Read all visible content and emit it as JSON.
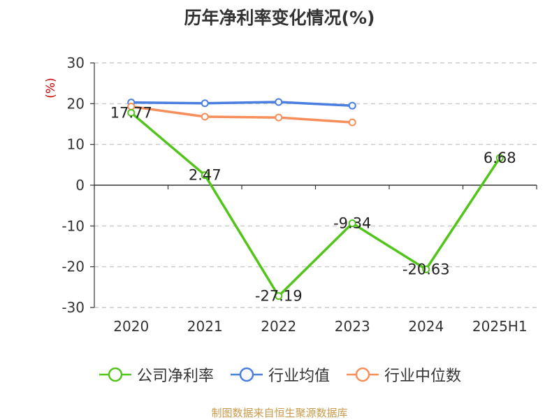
{
  "chart_data": {
    "type": "line",
    "title": "历年净利率变化情况(%)",
    "ylabel": "(%)",
    "categories": [
      "2020",
      "2021",
      "2022",
      "2023",
      "2024",
      "2025H1"
    ],
    "ylim": [
      -30,
      30
    ],
    "yticks": [
      "30",
      "20",
      "10",
      "0",
      "-10",
      "-20",
      "-30"
    ],
    "grid": true,
    "legend_position": "bottom",
    "series": [
      {
        "name": "公司净利率",
        "color": "#52c41a",
        "values": [
          17.77,
          2.47,
          -27.19,
          -9.34,
          -20.63,
          6.68
        ],
        "labels": [
          "17.77",
          "2.47",
          "-27.19",
          "-9.34",
          "-20.63",
          "6.68"
        ]
      },
      {
        "name": "行业均值",
        "color": "#4a7fe0",
        "values": [
          20.3,
          20.1,
          20.4,
          19.5,
          null,
          null
        ]
      },
      {
        "name": "行业中位数",
        "color": "#f78f5c",
        "values": [
          19.3,
          16.8,
          16.6,
          15.4,
          null,
          null
        ]
      }
    ]
  },
  "source": "制图数据来自恒生聚源数据库"
}
